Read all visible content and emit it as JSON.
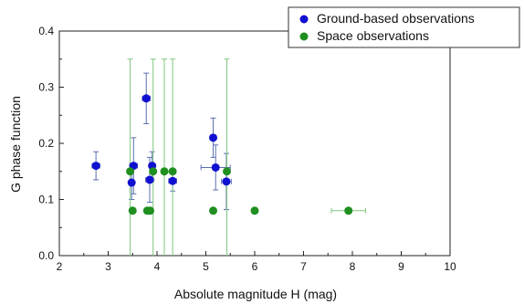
{
  "chart_data": {
    "type": "scatter",
    "title": "",
    "xlabel": "Absolute magnitude H (mag)",
    "ylabel": "G phase function",
    "xlim": [
      2,
      10
    ],
    "ylim": [
      0.0,
      0.4
    ],
    "xticks": [
      2,
      3,
      4,
      5,
      6,
      7,
      8,
      9,
      10
    ],
    "yticks": [
      0.0,
      0.1,
      0.2,
      0.3,
      0.4
    ],
    "ytick_labels": [
      "0.0",
      "0.1",
      "0.2",
      "0.3",
      "0.4"
    ],
    "grid": false,
    "legend": "top-right",
    "series": [
      {
        "name": "Ground-based observations",
        "color": "#1010d0",
        "points": [
          {
            "x": 2.75,
            "y": 0.16,
            "xerr": 0.08,
            "yerr": 0.025
          },
          {
            "x": 3.48,
            "y": 0.13,
            "xerr": 0.05,
            "yerr": 0.03
          },
          {
            "x": 3.52,
            "y": 0.16,
            "xerr": 0.08,
            "yerr": 0.05
          },
          {
            "x": 3.78,
            "y": 0.28,
            "xerr": 0.08,
            "yerr": 0.045
          },
          {
            "x": 3.85,
            "y": 0.135,
            "xerr": 0.08,
            "yerr": 0.04
          },
          {
            "x": 3.9,
            "y": 0.16,
            "xerr": 0.05,
            "yerr": 0.025
          },
          {
            "x": 4.32,
            "y": 0.133,
            "xerr": 0.08,
            "yerr": 0.018
          },
          {
            "x": 5.15,
            "y": 0.21,
            "xerr": 0.06,
            "yerr": 0.035
          },
          {
            "x": 5.2,
            "y": 0.157,
            "xerr": 0.3,
            "yerr": 0.04
          },
          {
            "x": 5.42,
            "y": 0.132,
            "xerr": 0.1,
            "yerr": 0.05
          }
        ]
      },
      {
        "name": "Space observations",
        "color": "#1f8f1f",
        "points": [
          {
            "x": 3.45,
            "y": 0.15,
            "xerr": 0.0,
            "yerr": 0.2
          },
          {
            "x": 3.5,
            "y": 0.08,
            "xerr": 0.0,
            "yerr": 0.0
          },
          {
            "x": 3.8,
            "y": 0.08,
            "xerr": 0.0,
            "yerr": 0.0
          },
          {
            "x": 3.86,
            "y": 0.08,
            "xerr": 0.0,
            "yerr": 0.0
          },
          {
            "x": 3.92,
            "y": 0.15,
            "xerr": 0.0,
            "yerr": 0.2
          },
          {
            "x": 4.15,
            "y": 0.15,
            "xerr": 0.0,
            "yerr": 0.2
          },
          {
            "x": 4.32,
            "y": 0.15,
            "xerr": 0.0,
            "yerr": 0.2
          },
          {
            "x": 5.15,
            "y": 0.08,
            "xerr": 0.0,
            "yerr": 0.0
          },
          {
            "x": 5.43,
            "y": 0.15,
            "xerr": 0.0,
            "yerr": 0.2
          },
          {
            "x": 6.0,
            "y": 0.08,
            "xerr": 0.05,
            "yerr": 0.0
          },
          {
            "x": 7.92,
            "y": 0.08,
            "xerr": 0.35,
            "yerr": 0.0
          }
        ]
      }
    ]
  }
}
